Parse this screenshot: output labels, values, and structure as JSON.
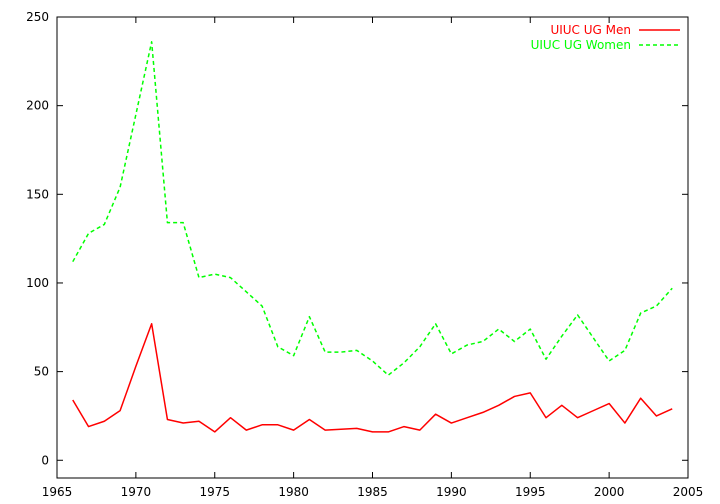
{
  "chart_data": {
    "type": "line",
    "xlim": [
      1965,
      2005
    ],
    "ylim": [
      -10,
      250
    ],
    "xticks": [
      1965,
      1970,
      1975,
      1980,
      1985,
      1990,
      1995,
      2000,
      2005
    ],
    "yticks": [
      0,
      50,
      100,
      150,
      200,
      250
    ],
    "grid": false,
    "legend_position": "top-right",
    "x": [
      1966,
      1967,
      1968,
      1969,
      1970,
      1971,
      1972,
      1973,
      1974,
      1975,
      1976,
      1977,
      1978,
      1979,
      1980,
      1981,
      1982,
      1983,
      1984,
      1985,
      1986,
      1987,
      1988,
      1989,
      1990,
      1991,
      1992,
      1993,
      1994,
      1995,
      1996,
      1997,
      1998,
      1999,
      2000,
      2001,
      2002,
      2003,
      2004
    ],
    "series": [
      {
        "name": "UIUC UG Men",
        "color": "#ff0000",
        "dash": "solid",
        "values": [
          34,
          19,
          22,
          28,
          53,
          77,
          23,
          21,
          22,
          16,
          24,
          17,
          20,
          20,
          17,
          23,
          17,
          17.5,
          18,
          16,
          16,
          19,
          17,
          26,
          21,
          24,
          27,
          31,
          36,
          38,
          24,
          31,
          24,
          28,
          32,
          21,
          35,
          25,
          29
        ]
      },
      {
        "name": "UIUC UG Women",
        "color": "#00ff00",
        "dash": "dashed",
        "values": [
          112,
          128,
          133,
          154,
          195,
          236,
          134,
          134,
          103,
          105,
          103,
          95,
          87,
          64,
          59,
          81,
          61,
          61,
          62,
          56,
          48,
          55,
          64,
          77,
          60,
          65,
          67,
          74,
          67,
          74,
          57,
          70,
          82,
          69,
          56,
          62,
          83,
          87,
          97
        ]
      }
    ]
  }
}
